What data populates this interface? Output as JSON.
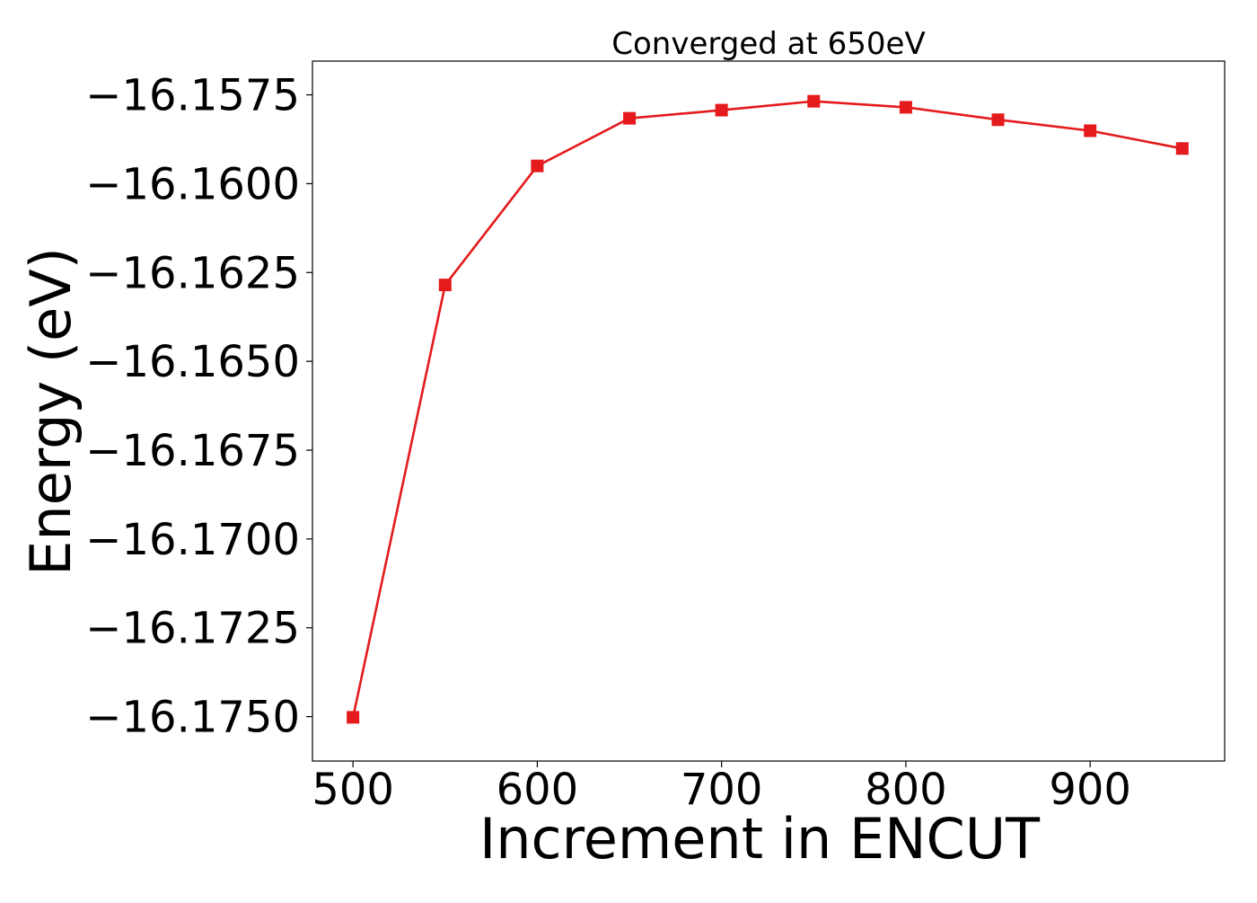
{
  "chart_data": {
    "type": "line",
    "title": "Converged at 650eV",
    "xlabel": "Increment in ENCUT",
    "ylabel": "Energy (eV)",
    "xlim": [
      478,
      973
    ],
    "ylim": [
      -16.17625,
      -16.15655
    ],
    "xticks": [
      500,
      600,
      700,
      800,
      900
    ],
    "xtick_labels": [
      "500",
      "600",
      "700",
      "800",
      "900"
    ],
    "yticks": [
      -16.1575,
      -16.16,
      -16.1625,
      -16.165,
      -16.1675,
      -16.17,
      -16.1725,
      -16.175
    ],
    "ytick_labels": [
      "−16.1575",
      "−16.1600",
      "−16.1625",
      "−16.1650",
      "−16.1675",
      "−16.1700",
      "−16.1725",
      "−16.1750"
    ],
    "grid": false,
    "series": [
      {
        "color": "#e41a1c",
        "marker": "square",
        "x": [
          500,
          550,
          600,
          650,
          700,
          750,
          800,
          850,
          900,
          950
        ],
        "y": [
          -16.17502,
          -16.16285,
          -16.1595,
          -16.15816,
          -16.15793,
          -16.15768,
          -16.15785,
          -16.1582,
          -16.15851,
          -16.15901
        ]
      }
    ]
  }
}
